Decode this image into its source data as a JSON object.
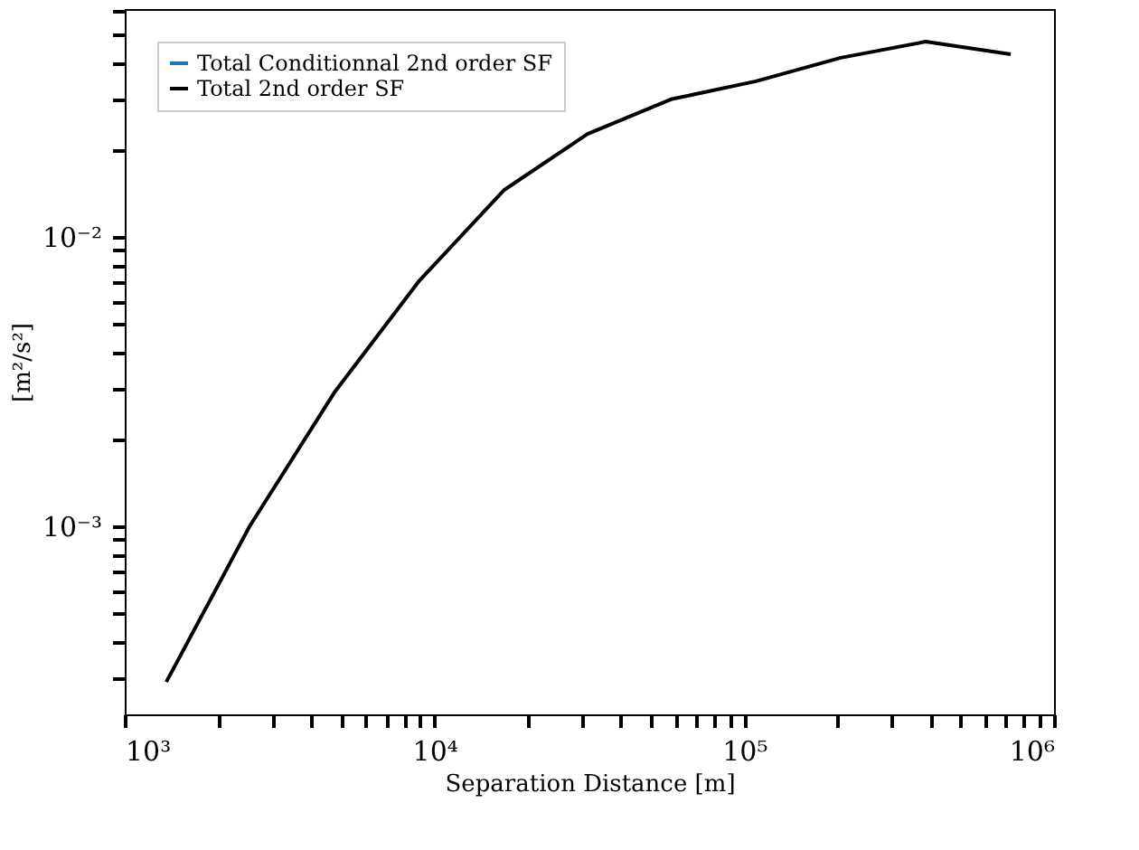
{
  "chart_data": {
    "type": "line",
    "xlabel": "Separation Distance [m]",
    "ylabel": "[m²/s²]",
    "log": "xy",
    "grid": false,
    "legend": "top left",
    "marker": "none",
    "line_style": "solid",
    "x": [
      1362,
      2530,
      4750,
      8950,
      16800,
      31200,
      58000,
      109000,
      205000,
      385000,
      725000
    ],
    "series": [
      {
        "name": "Total Conditionnal 2nd order SF",
        "color": "#1f77b4",
        "values": [
          null,
          null,
          null,
          null,
          null,
          null,
          null,
          null,
          null,
          null,
          null
        ]
      },
      {
        "name": "Total 2nd order SF",
        "color": "#000000",
        "values": [
          0.00029,
          0.001,
          0.0029,
          0.00708,
          0.01454,
          0.0227,
          0.0299,
          0.0345,
          0.0416,
          0.0473,
          0.0428
        ]
      }
    ],
    "xlim": [
      1000,
      1000000
    ],
    "xticks": [
      {
        "value": 1000,
        "label": "10³"
      },
      {
        "value": 2000,
        "label": null
      },
      {
        "value": 3000,
        "label": null
      },
      {
        "value": 4000,
        "label": null
      },
      {
        "value": 5000,
        "label": null
      },
      {
        "value": 6000,
        "label": null
      },
      {
        "value": 7000,
        "label": null
      },
      {
        "value": 8000,
        "label": null
      },
      {
        "value": 9000,
        "label": null
      },
      {
        "value": 10000,
        "label": "10⁴"
      },
      {
        "value": 20000,
        "label": null
      },
      {
        "value": 30000,
        "label": null
      },
      {
        "value": 40000,
        "label": null
      },
      {
        "value": 50000,
        "label": null
      },
      {
        "value": 60000,
        "label": null
      },
      {
        "value": 70000,
        "label": null
      },
      {
        "value": 80000,
        "label": null
      },
      {
        "value": 90000,
        "label": null
      },
      {
        "value": 100000,
        "label": "10⁵"
      },
      {
        "value": 200000,
        "label": null
      },
      {
        "value": 300000,
        "label": null
      },
      {
        "value": 400000,
        "label": null
      },
      {
        "value": 500000,
        "label": null
      },
      {
        "value": 600000,
        "label": null
      },
      {
        "value": 700000,
        "label": null
      },
      {
        "value": 800000,
        "label": null
      },
      {
        "value": 900000,
        "label": null
      },
      {
        "value": 1000000,
        "label": "10⁶"
      }
    ],
    "ylim": [
      0.000224,
      0.0613
    ],
    "yticks": [
      {
        "value": 0.0003,
        "label": null
      },
      {
        "value": 0.0004,
        "label": null
      },
      {
        "value": 0.0005,
        "label": null
      },
      {
        "value": 0.0006,
        "label": null
      },
      {
        "value": 0.0007,
        "label": null
      },
      {
        "value": 0.0008,
        "label": null
      },
      {
        "value": 0.0009,
        "label": null
      },
      {
        "value": 0.001,
        "label": "10⁻³"
      },
      {
        "value": 0.002,
        "label": null
      },
      {
        "value": 0.003,
        "label": null
      },
      {
        "value": 0.004,
        "label": null
      },
      {
        "value": 0.005,
        "label": null
      },
      {
        "value": 0.006,
        "label": null
      },
      {
        "value": 0.007,
        "label": null
      },
      {
        "value": 0.008,
        "label": null
      },
      {
        "value": 0.009,
        "label": null
      },
      {
        "value": 0.01,
        "label": "10⁻²"
      },
      {
        "value": 0.02,
        "label": null
      },
      {
        "value": 0.03,
        "label": null
      },
      {
        "value": 0.04,
        "label": null
      },
      {
        "value": 0.05,
        "label": null
      },
      {
        "value": 0.06,
        "label": null
      }
    ]
  }
}
